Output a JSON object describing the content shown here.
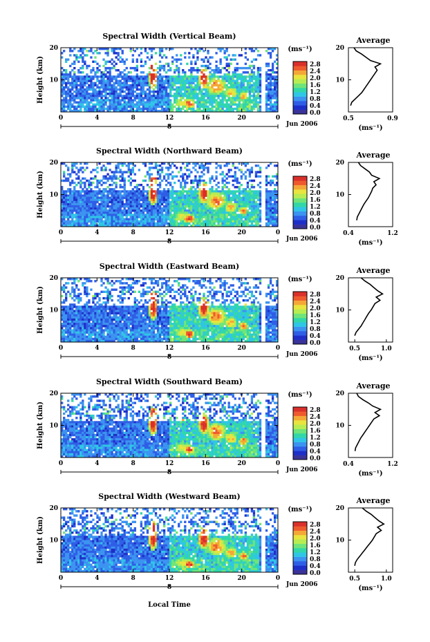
{
  "chart_data": [
    {
      "type": "heatmap",
      "title": "Spectral Width (Vertical Beam)",
      "ylabel": "Height (km)",
      "yticks": [
        "20",
        "10"
      ],
      "xticks": [
        "0",
        "4",
        "8",
        "12",
        "16",
        "20",
        "0"
      ],
      "date_label": "8",
      "month_label": "Jun 2006",
      "colorbar": {
        "unit": "(ms⁻¹)",
        "ticks": [
          "2.8",
          "2.4",
          "2.0",
          "1.6",
          "1.2",
          "0.8",
          "0.4",
          "0.0"
        ]
      },
      "average": {
        "title": "Average",
        "xticks": [
          "0.5",
          "0.9"
        ],
        "xlabel": "(ms⁻¹)",
        "yticks": [
          "20",
          "10"
        ],
        "xlim": [
          0.5,
          0.9
        ],
        "profile": [
          [
            0.52,
            2
          ],
          [
            0.53,
            3
          ],
          [
            0.56,
            4
          ],
          [
            0.59,
            5
          ],
          [
            0.62,
            6
          ],
          [
            0.64,
            7
          ],
          [
            0.66,
            8
          ],
          [
            0.68,
            9
          ],
          [
            0.7,
            10
          ],
          [
            0.72,
            11
          ],
          [
            0.74,
            12
          ],
          [
            0.76,
            13
          ],
          [
            0.74,
            14
          ],
          [
            0.79,
            15
          ],
          [
            0.7,
            16
          ],
          [
            0.66,
            17
          ],
          [
            0.62,
            18
          ],
          [
            0.57,
            19
          ],
          [
            0.55,
            20
          ]
        ]
      }
    },
    {
      "type": "heatmap",
      "title": "Spectral Width (Northward Beam)",
      "ylabel": "Height (km)",
      "yticks": [
        "20",
        "10"
      ],
      "xticks": [
        "0",
        "4",
        "8",
        "12",
        "16",
        "20",
        "0"
      ],
      "date_label": "8",
      "month_label": "Jun 2006",
      "colorbar": {
        "unit": "(ms⁻¹)",
        "ticks": [
          "2.8",
          "2.4",
          "2.0",
          "1.6",
          "1.2",
          "0.8",
          "0.4",
          "0.0"
        ]
      },
      "average": {
        "title": "Average",
        "xticks": [
          "0.4",
          "1.2"
        ],
        "xlabel": "(ms⁻¹)",
        "yticks": [
          "20",
          "10"
        ],
        "xlim": [
          0.4,
          1.2
        ],
        "profile": [
          [
            0.55,
            2
          ],
          [
            0.56,
            3
          ],
          [
            0.59,
            4
          ],
          [
            0.62,
            5
          ],
          [
            0.65,
            6
          ],
          [
            0.68,
            7
          ],
          [
            0.72,
            8
          ],
          [
            0.76,
            9
          ],
          [
            0.79,
            10
          ],
          [
            0.82,
            11
          ],
          [
            0.84,
            12
          ],
          [
            0.9,
            13
          ],
          [
            0.86,
            14
          ],
          [
            0.96,
            15
          ],
          [
            0.82,
            16
          ],
          [
            0.78,
            17
          ],
          [
            0.7,
            18
          ],
          [
            0.62,
            19
          ],
          [
            0.58,
            20
          ]
        ]
      }
    },
    {
      "type": "heatmap",
      "title": "Spectral Width (Eastward Beam)",
      "ylabel": "Height (km)",
      "yticks": [
        "20",
        "10"
      ],
      "xticks": [
        "0",
        "4",
        "8",
        "12",
        "16",
        "20",
        "0"
      ],
      "date_label": "8",
      "month_label": "Jun 2006",
      "colorbar": {
        "unit": "(ms⁻¹)",
        "ticks": [
          "2.8",
          "2.4",
          "2.0",
          "1.6",
          "1.2",
          "0.8",
          "0.4",
          "0.0"
        ]
      },
      "average": {
        "title": "Average",
        "xticks": [
          "0.5",
          "1.0"
        ],
        "xlabel": "(ms⁻¹)",
        "yticks": [
          "20",
          "10"
        ],
        "xlim": [
          0.4,
          1.1
        ],
        "profile": [
          [
            0.5,
            2
          ],
          [
            0.52,
            3
          ],
          [
            0.56,
            4
          ],
          [
            0.6,
            5
          ],
          [
            0.63,
            6
          ],
          [
            0.66,
            7
          ],
          [
            0.69,
            8
          ],
          [
            0.72,
            9
          ],
          [
            0.76,
            10
          ],
          [
            0.79,
            11
          ],
          [
            0.82,
            12
          ],
          [
            0.9,
            13
          ],
          [
            0.84,
            14
          ],
          [
            0.94,
            15
          ],
          [
            0.86,
            16
          ],
          [
            0.8,
            17
          ],
          [
            0.74,
            18
          ],
          [
            0.66,
            19
          ],
          [
            0.6,
            20
          ]
        ]
      }
    },
    {
      "type": "heatmap",
      "title": "Spectral Width (Southward Beam)",
      "ylabel": "Height (km)",
      "yticks": [
        "20",
        "10"
      ],
      "xticks": [
        "0",
        "4",
        "8",
        "12",
        "16",
        "20",
        "0"
      ],
      "date_label": "8",
      "month_label": "Jun 2006",
      "colorbar": {
        "unit": "(ms⁻¹)",
        "ticks": [
          "2.8",
          "2.4",
          "2.0",
          "1.6",
          "1.2",
          "0.8",
          "0.4",
          "0.0"
        ]
      },
      "average": {
        "title": "Average",
        "xticks": [
          "0.4",
          "1.2"
        ],
        "xlabel": "(ms⁻¹)",
        "yticks": [
          "20",
          "10"
        ],
        "xlim": [
          0.4,
          1.2
        ],
        "profile": [
          [
            0.52,
            2
          ],
          [
            0.53,
            3
          ],
          [
            0.56,
            4
          ],
          [
            0.59,
            5
          ],
          [
            0.62,
            6
          ],
          [
            0.66,
            7
          ],
          [
            0.7,
            8
          ],
          [
            0.74,
            9
          ],
          [
            0.78,
            10
          ],
          [
            0.82,
            11
          ],
          [
            0.86,
            12
          ],
          [
            0.96,
            13
          ],
          [
            0.88,
            14
          ],
          [
            0.98,
            15
          ],
          [
            0.84,
            16
          ],
          [
            0.76,
            17
          ],
          [
            0.66,
            18
          ],
          [
            0.58,
            19
          ],
          [
            0.55,
            20
          ]
        ]
      }
    },
    {
      "type": "heatmap",
      "title": "Spectral Width (Westward Beam)",
      "ylabel": "Height (km)",
      "yticks": [
        "20",
        "10"
      ],
      "xticks": [
        "0",
        "4",
        "8",
        "12",
        "16",
        "20",
        "0"
      ],
      "date_label": "8",
      "month_label": "Jun 2006",
      "colorbar": {
        "unit": "(ms⁻¹)",
        "ticks": [
          "2.8",
          "2.4",
          "2.0",
          "1.6",
          "1.2",
          "0.8",
          "0.4",
          "0.0"
        ]
      },
      "average": {
        "title": "Average",
        "xticks": [
          "0.5",
          "1.0"
        ],
        "xlabel": "(ms⁻¹)",
        "yticks": [
          "20",
          "10"
        ],
        "xlim": [
          0.4,
          1.1
        ],
        "profile": [
          [
            0.5,
            2
          ],
          [
            0.51,
            3
          ],
          [
            0.54,
            4
          ],
          [
            0.58,
            5
          ],
          [
            0.62,
            6
          ],
          [
            0.66,
            7
          ],
          [
            0.7,
            8
          ],
          [
            0.74,
            9
          ],
          [
            0.78,
            10
          ],
          [
            0.81,
            11
          ],
          [
            0.84,
            12
          ],
          [
            0.92,
            13
          ],
          [
            0.86,
            14
          ],
          [
            0.96,
            15
          ],
          [
            0.88,
            16
          ],
          [
            0.82,
            17
          ],
          [
            0.76,
            18
          ],
          [
            0.68,
            19
          ],
          [
            0.62,
            20
          ]
        ]
      }
    }
  ],
  "xlabel": "Local Time",
  "colors": {
    "colorscale": [
      "#3a3399",
      "#1e2fc8",
      "#2f5ee6",
      "#3c93f0",
      "#2fc6e6",
      "#31d7a8",
      "#6fe47a",
      "#b7ec52",
      "#e9e43f",
      "#f4a737",
      "#ee5a2d",
      "#d9302b"
    ],
    "background": "#ffffff",
    "axis": "#000000"
  }
}
